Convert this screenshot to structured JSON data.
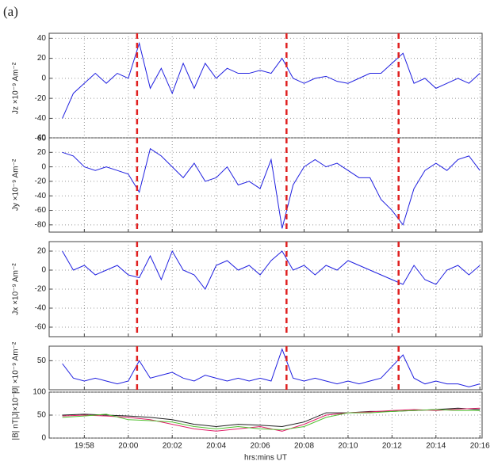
{
  "label": "(a)",
  "chart_data": [
    {
      "type": "line",
      "ylabel": "Jz ×10⁻⁹ Am⁻²",
      "x": [
        1197,
        1197.5,
        1198,
        1198.5,
        1199,
        1199.5,
        1200,
        1200.5,
        1201,
        1201.5,
        1202,
        1202.5,
        1203,
        1203.5,
        1204,
        1204.5,
        1205,
        1205.5,
        1206,
        1206.5,
        1207,
        1207.5,
        1208,
        1208.5,
        1209,
        1209.5,
        1210,
        1210.5,
        1211,
        1211.5,
        1212,
        1212.5,
        1213,
        1213.5,
        1214,
        1214.5,
        1215,
        1215.5,
        1216
      ],
      "series": [
        {
          "color": "#2020e0",
          "values": [
            -40,
            -15,
            -5,
            5,
            -5,
            5,
            0,
            35,
            -10,
            10,
            -15,
            15,
            -10,
            15,
            0,
            10,
            5,
            5,
            8,
            5,
            20,
            0,
            -5,
            0,
            2,
            -3,
            -5,
            0,
            5,
            5,
            15,
            25,
            -5,
            0,
            -10,
            -5,
            0,
            -5,
            5
          ]
        }
      ],
      "xlim": [
        1196.4,
        1216.1
      ],
      "xticks": [
        1198,
        1200,
        1202,
        1204,
        1206,
        1208,
        1210,
        1212,
        1214,
        1216
      ],
      "ylim": [
        -65,
        45
      ],
      "yticks": [
        -60,
        -40,
        -20,
        0,
        20,
        40
      ],
      "grid": true,
      "vlines": [
        1200.4,
        1207.2,
        1212.3
      ],
      "vline_color": "#e02020"
    },
    {
      "type": "line",
      "ylabel": "Jy ×10⁻⁹ Am⁻²",
      "x": [
        1197,
        1197.5,
        1198,
        1198.5,
        1199,
        1199.5,
        1200,
        1200.5,
        1201,
        1201.5,
        1202,
        1202.5,
        1203,
        1203.5,
        1204,
        1204.5,
        1205,
        1205.5,
        1206,
        1206.5,
        1207,
        1207.5,
        1208,
        1208.5,
        1209,
        1209.5,
        1210,
        1210.5,
        1211,
        1211.5,
        1212,
        1212.5,
        1213,
        1213.5,
        1214,
        1214.5,
        1215,
        1215.5,
        1216
      ],
      "series": [
        {
          "color": "#2020e0",
          "values": [
            20,
            15,
            0,
            -5,
            0,
            -5,
            -10,
            -35,
            25,
            15,
            0,
            -15,
            5,
            -20,
            -15,
            0,
            -25,
            -20,
            -30,
            10,
            -85,
            -25,
            0,
            10,
            0,
            5,
            -5,
            -15,
            -15,
            -45,
            -60,
            -80,
            -30,
            -5,
            5,
            -5,
            10,
            15,
            -5
          ]
        }
      ],
      "xlim": [
        1196.4,
        1216.1
      ],
      "xticks": [
        1198,
        1200,
        1202,
        1204,
        1206,
        1208,
        1210,
        1212,
        1214,
        1216
      ],
      "ylim": [
        -90,
        40
      ],
      "yticks": [
        -80,
        -60,
        -40,
        -20,
        0,
        20,
        40
      ],
      "grid": true,
      "vlines": [
        1200.4,
        1207.2,
        1212.3
      ],
      "vline_color": "#e02020"
    },
    {
      "type": "line",
      "ylabel": "Jx ×10⁻⁹ Am⁻²",
      "x": [
        1197,
        1197.5,
        1198,
        1198.5,
        1199,
        1199.5,
        1200,
        1200.5,
        1201,
        1201.5,
        1202,
        1202.5,
        1203,
        1203.5,
        1204,
        1204.5,
        1205,
        1205.5,
        1206,
        1206.5,
        1207,
        1207.5,
        1208,
        1208.5,
        1209,
        1209.5,
        1210,
        1210.5,
        1211,
        1211.5,
        1212,
        1212.5,
        1213,
        1213.5,
        1214,
        1214.5,
        1215,
        1215.5,
        1216
      ],
      "series": [
        {
          "color": "#2020e0",
          "values": [
            20,
            0,
            5,
            -5,
            0,
            5,
            -5,
            -8,
            15,
            -10,
            20,
            0,
            -5,
            -20,
            5,
            10,
            0,
            5,
            -5,
            10,
            20,
            0,
            5,
            -5,
            5,
            0,
            10,
            5,
            0,
            -5,
            -10,
            -15,
            5,
            -10,
            -15,
            0,
            5,
            -5,
            5
          ]
        }
      ],
      "xlim": [
        1196.4,
        1216.1
      ],
      "xticks": [
        1198,
        1200,
        1202,
        1204,
        1206,
        1208,
        1210,
        1212,
        1214,
        1216
      ],
      "ylim": [
        -70,
        30
      ],
      "yticks": [
        -60,
        -40,
        -20,
        0,
        20
      ],
      "grid": true,
      "vlines": [
        1200.4,
        1207.2,
        1212.3
      ],
      "vline_color": "#e02020"
    },
    {
      "type": "line",
      "ylabel": "|J| ×10⁻⁹ Am⁻²",
      "x": [
        1197,
        1197.5,
        1198,
        1198.5,
        1199,
        1199.5,
        1200,
        1200.5,
        1201,
        1201.5,
        1202,
        1202.5,
        1203,
        1203.5,
        1204,
        1204.5,
        1205,
        1205.5,
        1206,
        1206.5,
        1207,
        1207.5,
        1208,
        1208.5,
        1209,
        1209.5,
        1210,
        1210.5,
        1211,
        1211.5,
        1212,
        1212.5,
        1213,
        1213.5,
        1214,
        1214.5,
        1215,
        1215.5,
        1216
      ],
      "series": [
        {
          "color": "#2020e0",
          "values": [
            45,
            20,
            15,
            20,
            15,
            10,
            15,
            50,
            20,
            25,
            30,
            20,
            15,
            25,
            20,
            15,
            20,
            15,
            20,
            15,
            70,
            20,
            15,
            20,
            15,
            10,
            15,
            10,
            15,
            20,
            40,
            60,
            20,
            10,
            15,
            10,
            10,
            5,
            10
          ]
        }
      ],
      "xlim": [
        1196.4,
        1216.1
      ],
      "xticks": [
        1198,
        1200,
        1202,
        1204,
        1206,
        1208,
        1210,
        1212,
        1214,
        1216
      ],
      "ylim": [
        0,
        75
      ],
      "yticks": [
        50
      ],
      "grid": true,
      "vlines": [
        1200.4,
        1207.2,
        1212.3
      ],
      "vline_color": "#e02020"
    },
    {
      "type": "line",
      "ylabel": "|B| nT|J|×10⁻⁹",
      "xlabel": "hrs:mins UT",
      "x": [
        1197,
        1198,
        1199,
        1200,
        1201,
        1202,
        1203,
        1204,
        1205,
        1206,
        1207,
        1208,
        1209,
        1210,
        1211,
        1212,
        1213,
        1214,
        1215,
        1216
      ],
      "series": [
        {
          "color": "#202020",
          "values": [
            50,
            52,
            50,
            48,
            45,
            40,
            30,
            25,
            30,
            28,
            25,
            35,
            55,
            55,
            58,
            58,
            60,
            62,
            65,
            62
          ]
        },
        {
          "color": "#e0206a",
          "values": [
            48,
            50,
            48,
            45,
            40,
            30,
            20,
            15,
            20,
            25,
            15,
            30,
            50,
            55,
            57,
            60,
            62,
            60,
            63,
            65
          ]
        },
        {
          "color": "#50c030",
          "values": [
            45,
            48,
            52,
            40,
            38,
            35,
            25,
            20,
            25,
            20,
            18,
            25,
            45,
            55,
            55,
            58,
            60,
            62,
            60,
            60
          ]
        }
      ],
      "xlim": [
        1196.4,
        1216.1
      ],
      "xticks": [
        {
          "value": 1198,
          "label": "19:58"
        },
        {
          "value": 1200,
          "label": "20:00"
        },
        {
          "value": 1202,
          "label": "20:02"
        },
        {
          "value": 1204,
          "label": "20:04"
        },
        {
          "value": 1206,
          "label": "20:06"
        },
        {
          "value": 1208,
          "label": "20:08"
        },
        {
          "value": 1210,
          "label": "20:10"
        },
        {
          "value": 1212,
          "label": "20:12"
        },
        {
          "value": 1214,
          "label": "20:14"
        },
        {
          "value": 1216,
          "label": "20:16"
        }
      ],
      "ylim": [
        0,
        100
      ],
      "yticks": [
        0,
        50,
        100
      ],
      "grid": true
    }
  ]
}
